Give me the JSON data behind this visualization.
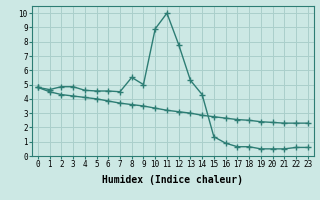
{
  "line1_x": [
    0,
    1,
    2,
    3,
    4,
    5,
    6,
    7,
    8,
    9,
    10,
    11,
    12,
    13,
    14,
    15,
    16,
    17,
    18,
    19,
    20,
    21,
    22,
    23
  ],
  "line1_y": [
    4.8,
    4.65,
    4.85,
    4.85,
    4.6,
    4.55,
    4.55,
    4.5,
    5.5,
    5.0,
    8.9,
    10.0,
    7.8,
    5.3,
    4.3,
    1.35,
    0.9,
    0.65,
    0.65,
    0.5,
    0.5,
    0.5,
    0.6,
    0.6
  ],
  "line2_x": [
    0,
    1,
    2,
    3,
    4,
    5,
    6,
    7,
    8,
    9,
    10,
    11,
    12,
    13,
    14,
    15,
    16,
    17,
    18,
    19,
    20,
    21,
    22,
    23
  ],
  "line2_y": [
    4.8,
    4.5,
    4.3,
    4.2,
    4.1,
    4.0,
    3.85,
    3.7,
    3.6,
    3.5,
    3.35,
    3.2,
    3.1,
    3.0,
    2.85,
    2.75,
    2.65,
    2.55,
    2.5,
    2.4,
    2.35,
    2.3,
    2.3,
    2.3
  ],
  "color": "#2d7d74",
  "bg_color": "#cce8e4",
  "grid_color": "#aacfcb",
  "xlabel": "Humidex (Indice chaleur)",
  "xlim": [
    -0.5,
    23.5
  ],
  "ylim": [
    0,
    10.5
  ],
  "xticks": [
    0,
    1,
    2,
    3,
    4,
    5,
    6,
    7,
    8,
    9,
    10,
    11,
    12,
    13,
    14,
    15,
    16,
    17,
    18,
    19,
    20,
    21,
    22,
    23
  ],
  "yticks": [
    0,
    1,
    2,
    3,
    4,
    5,
    6,
    7,
    8,
    9,
    10
  ],
  "marker": "+",
  "markersize": 4,
  "linewidth": 1.0,
  "xlabel_fontsize": 7,
  "tick_fontsize": 5.5
}
